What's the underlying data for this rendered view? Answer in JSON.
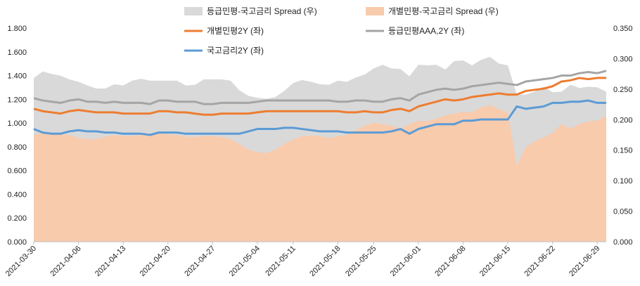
{
  "chart_data": {
    "type": "area+line",
    "x_dates": [
      "2021-03-30",
      "2021-03-31",
      "2021-04-01",
      "2021-04-02",
      "2021-04-05",
      "2021-04-06",
      "2021-04-07",
      "2021-04-08",
      "2021-04-09",
      "2021-04-12",
      "2021-04-13",
      "2021-04-14",
      "2021-04-15",
      "2021-04-16",
      "2021-04-19",
      "2021-04-20",
      "2021-04-21",
      "2021-04-22",
      "2021-04-23",
      "2021-04-26",
      "2021-04-27",
      "2021-04-28",
      "2021-04-29",
      "2021-04-30",
      "2021-05-03",
      "2021-05-04",
      "2021-05-06",
      "2021-05-07",
      "2021-05-10",
      "2021-05-11",
      "2021-05-12",
      "2021-05-13",
      "2021-05-14",
      "2021-05-17",
      "2021-05-18",
      "2021-05-20",
      "2021-05-21",
      "2021-05-24",
      "2021-05-25",
      "2021-05-26",
      "2021-05-27",
      "2021-05-28",
      "2021-05-31",
      "2021-06-01",
      "2021-06-02",
      "2021-06-03",
      "2021-06-04",
      "2021-06-07",
      "2021-06-08",
      "2021-06-09",
      "2021-06-10",
      "2021-06-11",
      "2021-06-14",
      "2021-06-15",
      "2021-06-16",
      "2021-06-17",
      "2021-06-18",
      "2021-06-21",
      "2021-06-22",
      "2021-06-23",
      "2021-06-24",
      "2021-06-25",
      "2021-06-28",
      "2021-06-29",
      "2021-06-30"
    ],
    "x_tick_labels": [
      "2021-03-30",
      "2021-04-06",
      "2021-04-13",
      "2021-04-20",
      "2021-04-27",
      "2021-05-04",
      "2021-05-11",
      "2021-05-18",
      "2021-05-25",
      "2021-06-01",
      "2021-06-08",
      "2021-06-15",
      "2021-06-22",
      "2021-06-29"
    ],
    "y_left": {
      "min": 0,
      "max": 1.8,
      "step": 0.2,
      "tick_labels": [
        "0.000",
        "0.200",
        "0.400",
        "0.600",
        "0.800",
        "1.000",
        "1.200",
        "1.400",
        "1.600",
        "1.800"
      ]
    },
    "y_right": {
      "min": 0,
      "max": 0.35,
      "step": 0.05,
      "tick_labels": [
        "0.000",
        "0.050",
        "0.100",
        "0.150",
        "0.200",
        "0.250",
        "0.300",
        "0.350"
      ]
    },
    "legend": {
      "area_aaa": "등급민평-국고금리 Spread (우)",
      "area_indiv": "개별민평-국고금리 Spread (우)",
      "line_indiv": "개별민평2Y (좌)",
      "line_aaa": "등급민평AAA,2Y (좌)",
      "line_ktb": "국고금리2Y (좌)"
    },
    "series": [
      {
        "name": "등급민평AAA,2Y (좌)",
        "axis": "left",
        "kind": "line",
        "color": "#a5a5a5",
        "values": [
          1.21,
          1.19,
          1.18,
          1.17,
          1.19,
          1.2,
          1.18,
          1.18,
          1.17,
          1.18,
          1.17,
          1.17,
          1.17,
          1.16,
          1.19,
          1.19,
          1.18,
          1.18,
          1.18,
          1.16,
          1.16,
          1.17,
          1.17,
          1.17,
          1.17,
          1.18,
          1.19,
          1.19,
          1.19,
          1.19,
          1.19,
          1.19,
          1.19,
          1.19,
          1.18,
          1.18,
          1.19,
          1.19,
          1.18,
          1.18,
          1.2,
          1.21,
          1.19,
          1.24,
          1.26,
          1.28,
          1.29,
          1.28,
          1.29,
          1.31,
          1.32,
          1.33,
          1.34,
          1.33,
          1.32,
          1.35,
          1.36,
          1.37,
          1.38,
          1.4,
          1.4,
          1.42,
          1.43,
          1.42,
          1.44
        ]
      },
      {
        "name": "개별민평2Y (좌)",
        "axis": "left",
        "kind": "line",
        "color": "#ed7d31",
        "values": [
          1.12,
          1.1,
          1.09,
          1.08,
          1.1,
          1.11,
          1.1,
          1.09,
          1.09,
          1.09,
          1.08,
          1.08,
          1.08,
          1.08,
          1.1,
          1.1,
          1.09,
          1.09,
          1.08,
          1.07,
          1.07,
          1.08,
          1.08,
          1.08,
          1.08,
          1.09,
          1.1,
          1.1,
          1.1,
          1.1,
          1.1,
          1.1,
          1.1,
          1.1,
          1.1,
          1.09,
          1.09,
          1.1,
          1.09,
          1.09,
          1.11,
          1.12,
          1.1,
          1.14,
          1.16,
          1.18,
          1.2,
          1.19,
          1.2,
          1.22,
          1.23,
          1.24,
          1.25,
          1.24,
          1.24,
          1.27,
          1.28,
          1.29,
          1.31,
          1.35,
          1.36,
          1.38,
          1.37,
          1.38,
          1.38
        ]
      },
      {
        "name": "국고금리2Y (좌)",
        "axis": "left",
        "kind": "line",
        "color": "#5b9bd5",
        "values": [
          0.95,
          0.92,
          0.91,
          0.91,
          0.93,
          0.94,
          0.93,
          0.93,
          0.92,
          0.92,
          0.91,
          0.91,
          0.91,
          0.9,
          0.92,
          0.92,
          0.92,
          0.91,
          0.91,
          0.91,
          0.91,
          0.91,
          0.91,
          0.91,
          0.93,
          0.95,
          0.95,
          0.95,
          0.96,
          0.96,
          0.95,
          0.94,
          0.93,
          0.93,
          0.93,
          0.92,
          0.92,
          0.92,
          0.92,
          0.92,
          0.93,
          0.95,
          0.91,
          0.95,
          0.97,
          0.99,
          0.99,
          0.99,
          1.02,
          1.02,
          1.03,
          1.03,
          1.03,
          1.03,
          1.14,
          1.12,
          1.13,
          1.14,
          1.17,
          1.17,
          1.18,
          1.18,
          1.19,
          1.17,
          1.17
        ]
      },
      {
        "name": "등급민평-국고금리 Spread (우)",
        "axis": "right",
        "kind": "area",
        "color": "#d9d9d9",
        "values": [
          0.268,
          0.279,
          0.275,
          0.272,
          0.266,
          0.262,
          0.256,
          0.251,
          0.251,
          0.258,
          0.256,
          0.264,
          0.267,
          0.264,
          0.264,
          0.264,
          0.264,
          0.256,
          0.257,
          0.266,
          0.266,
          0.266,
          0.264,
          0.248,
          0.239,
          0.236,
          0.234,
          0.237,
          0.247,
          0.26,
          0.265,
          0.262,
          0.258,
          0.257,
          0.264,
          0.262,
          0.269,
          0.274,
          0.284,
          0.29,
          0.284,
          0.283,
          0.271,
          0.29,
          0.289,
          0.29,
          0.282,
          0.296,
          0.297,
          0.289,
          0.298,
          0.303,
          0.292,
          0.289,
          0.241,
          0.241,
          0.246,
          0.254,
          0.245,
          0.246,
          0.257,
          0.252,
          0.254,
          0.253,
          0.246
        ]
      },
      {
        "name": "개별민평-국고금리 Spread (우)",
        "axis": "right",
        "kind": "area",
        "color": "#f8cbad",
        "values": [
          0.175,
          0.178,
          0.176,
          0.176,
          0.175,
          0.17,
          0.168,
          0.168,
          0.172,
          0.175,
          0.173,
          0.173,
          0.175,
          0.178,
          0.177,
          0.176,
          0.175,
          0.172,
          0.172,
          0.173,
          0.173,
          0.172,
          0.168,
          0.16,
          0.151,
          0.147,
          0.145,
          0.151,
          0.16,
          0.168,
          0.173,
          0.174,
          0.173,
          0.17,
          0.173,
          0.175,
          0.183,
          0.19,
          0.195,
          0.193,
          0.19,
          0.185,
          0.193,
          0.198,
          0.197,
          0.202,
          0.207,
          0.21,
          0.213,
          0.212,
          0.22,
          0.224,
          0.217,
          0.212,
          0.125,
          0.155,
          0.165,
          0.171,
          0.178,
          0.193,
          0.185,
          0.193,
          0.197,
          0.199,
          0.206
        ]
      }
    ]
  }
}
